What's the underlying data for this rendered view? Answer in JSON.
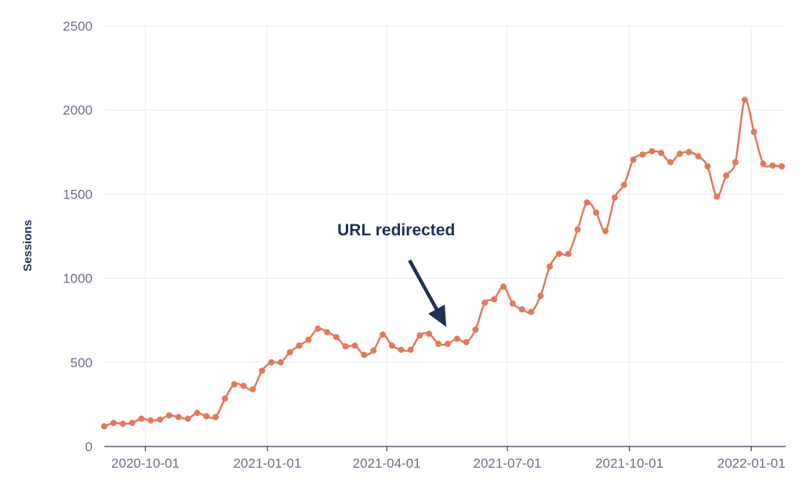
{
  "chart_data": {
    "type": "line",
    "title": "",
    "xlabel": "",
    "ylabel": "Sessions",
    "ylim": [
      0,
      2500
    ],
    "xlim": [
      "2020-08-31",
      "2022-01-24"
    ],
    "grid": true,
    "yticks": [
      0,
      500,
      1000,
      1500,
      2000,
      2500
    ],
    "xticks": [
      "2020-10-01",
      "2021-01-01",
      "2021-04-01",
      "2021-07-01",
      "2021-10-01",
      "2022-01-01"
    ],
    "colors": {
      "line": "#e07b5b",
      "annotation": "#1f3157",
      "grid": "#ececf0",
      "tick_text": "#6b7085"
    },
    "annotation": {
      "text": "URL redirected",
      "date": "2021-05-16",
      "value": 710
    },
    "series": [
      {
        "x": [
          "2020-08-31",
          "2020-09-07",
          "2020-09-14",
          "2020-09-21",
          "2020-09-28",
          "2020-10-05",
          "2020-10-12",
          "2020-10-19",
          "2020-10-26",
          "2020-11-02",
          "2020-11-09",
          "2020-11-16",
          "2020-11-23",
          "2020-11-30",
          "2020-12-07",
          "2020-12-14",
          "2020-12-21",
          "2020-12-28",
          "2021-01-04",
          "2021-01-11",
          "2021-01-18",
          "2021-01-25",
          "2021-02-01",
          "2021-02-08",
          "2021-02-15",
          "2021-02-22",
          "2021-03-01",
          "2021-03-08",
          "2021-03-15",
          "2021-03-22",
          "2021-03-29",
          "2021-04-05",
          "2021-04-12",
          "2021-04-19",
          "2021-04-26",
          "2021-05-03",
          "2021-05-10",
          "2021-05-17",
          "2021-05-24",
          "2021-05-31",
          "2021-06-07",
          "2021-06-14",
          "2021-06-21",
          "2021-06-28",
          "2021-07-05",
          "2021-07-12",
          "2021-07-19",
          "2021-07-26",
          "2021-08-02",
          "2021-08-09",
          "2021-08-16",
          "2021-08-23",
          "2021-08-30",
          "2021-09-06",
          "2021-09-13",
          "2021-09-20",
          "2021-09-27",
          "2021-10-04",
          "2021-10-11",
          "2021-10-18",
          "2021-10-25",
          "2021-11-01",
          "2021-11-08",
          "2021-11-15",
          "2021-11-22",
          "2021-11-29",
          "2021-12-06",
          "2021-12-13",
          "2021-12-20",
          "2021-12-27",
          "2022-01-03",
          "2022-01-10",
          "2022-01-17",
          "2022-01-24"
        ],
        "values": [
          120,
          140,
          135,
          140,
          165,
          155,
          160,
          185,
          175,
          165,
          200,
          180,
          175,
          285,
          370,
          360,
          340,
          450,
          500,
          500,
          560,
          600,
          635,
          700,
          680,
          650,
          595,
          600,
          545,
          570,
          665,
          600,
          575,
          575,
          660,
          670,
          610,
          610,
          640,
          620,
          695,
          855,
          875,
          950,
          850,
          815,
          800,
          895,
          1070,
          1145,
          1145,
          1290,
          1450,
          1390,
          1280,
          1480,
          1555,
          1705,
          1735,
          1755,
          1745,
          1690,
          1740,
          1750,
          1725,
          1665,
          1485,
          1610,
          1690,
          2060,
          1870,
          1680,
          1670,
          1665
        ]
      }
    ]
  }
}
